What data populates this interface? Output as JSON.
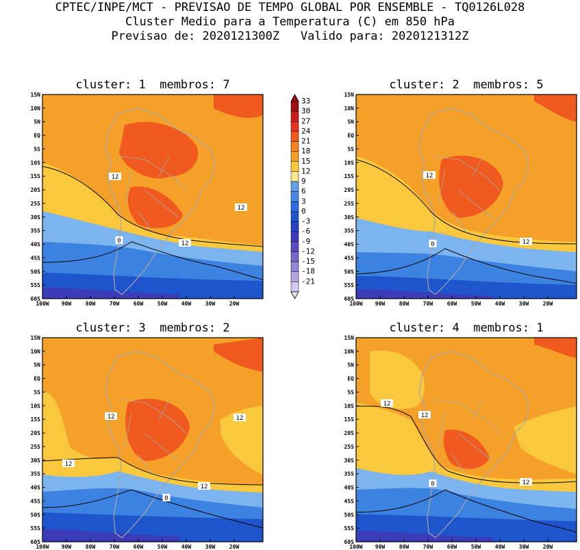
{
  "header": {
    "line1": "CPTEC/INPE/MCT - PREVISAO DE TEMPO GLOBAL POR ENSEMBLE - TQ0126L028",
    "line2": "Cluster Medio para a Temperatura (C) em 850 hPa",
    "line3": "Previsao de: 2020121300Z   Valido para: 2020121312Z"
  },
  "panels": [
    {
      "title": "cluster: 1  membros: 7",
      "contour_labels": [
        "12",
        "12",
        "12",
        "0"
      ]
    },
    {
      "title": "cluster: 2  membros: 5",
      "contour_labels": [
        "12",
        "12",
        "0"
      ]
    },
    {
      "title": "cluster: 3  membros: 2",
      "contour_labels": [
        "12",
        "12",
        "12",
        "12",
        "0"
      ]
    },
    {
      "title": "cluster: 4  membros: 1",
      "contour_labels": [
        "12",
        "12",
        "12",
        "0"
      ]
    }
  ],
  "lat_labels": [
    "15N",
    "10N",
    "5N",
    "EQ",
    "5S",
    "10S",
    "15S",
    "20S",
    "25S",
    "30S",
    "35S",
    "40S",
    "45S",
    "50S",
    "55S",
    "60S"
  ],
  "lon_labels": [
    "100W",
    "90W",
    "80W",
    "70W",
    "60W",
    "50W",
    "40W",
    "30W",
    "20W"
  ],
  "colorbar": {
    "labels": [
      "33",
      "30",
      "27",
      "24",
      "21",
      "18",
      "15",
      "12",
      "9",
      "6",
      "3",
      "0",
      "-3",
      "-6",
      "-9",
      "-12",
      "-15",
      "-18",
      "-21"
    ],
    "colors": [
      "#a01010",
      "#c81e1e",
      "#e8321e",
      "#f05a1e",
      "#f5821e",
      "#f5a028",
      "#fac83c",
      "#fae68c",
      "#5fa0e6",
      "#4687e6",
      "#2d6ee1",
      "#1e55cd",
      "#2846c3",
      "#3c3cb9",
      "#5a4bc3",
      "#7864cd",
      "#9682d7",
      "#b4a5e1",
      "#d2c8f0"
    ]
  },
  "colors": {
    "warm_15_18": "#f5a028",
    "warm_18_21": "#f5821e",
    "warm_21_24": "#f05a1e",
    "mild_12_15": "#fac83c",
    "light_9_12": "#fae68c",
    "cool_6_9": "#7bb4ee",
    "cool_3_6": "#5fa0e6",
    "cold_0_3": "#3c82e1",
    "cold_m3_0": "#2d6ee1",
    "cold_m6_m3": "#1e55cd",
    "cold_m9_m6": "#3c3cb9",
    "coast_gray": "#a8a8a8"
  }
}
